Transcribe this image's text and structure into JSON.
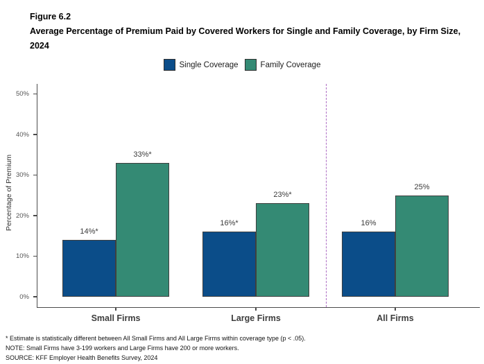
{
  "header": {
    "figure_number": "Figure 6.2",
    "title": "Average Percentage of Premium Paid by Covered Workers for Single and Family Coverage, by Firm Size, 2024"
  },
  "legend": {
    "items": [
      {
        "label": "Single Coverage",
        "color": "#0b4d89",
        "icon": "single-coverage-swatch"
      },
      {
        "label": "Family Coverage",
        "color": "#348a74",
        "icon": "family-coverage-swatch"
      }
    ]
  },
  "chart_data": {
    "type": "bar",
    "title": "Average Percentage of Premium Paid by Covered Workers for Single and Family Coverage, by Firm Size, 2024",
    "categories": [
      "Small Firms",
      "Large Firms",
      "All Firms"
    ],
    "series": [
      {
        "name": "Single Coverage",
        "color": "#0b4d89",
        "values": [
          14,
          16,
          16
        ],
        "labels": [
          "14%*",
          "16%*",
          "16%"
        ]
      },
      {
        "name": "Family Coverage",
        "color": "#348a74",
        "values": [
          33,
          23,
          25
        ],
        "labels": [
          "33%*",
          "23%*",
          "25%"
        ]
      }
    ],
    "xlabel": "",
    "ylabel": "Percentage of Premium",
    "ylim": [
      0,
      50
    ],
    "yticks": [
      0,
      10,
      20,
      30,
      40,
      50
    ],
    "ytick_labels": [
      "0%",
      "10%",
      "20%",
      "30%",
      "40%",
      "50%"
    ],
    "grid": false,
    "legend_position": "top",
    "separator": {
      "between": [
        "Large Firms",
        "All Firms"
      ],
      "style": "dashed",
      "color": "#ad6cc3"
    }
  },
  "footnotes": [
    "* Estimate is statistically different between All Small Firms and All Large Firms within coverage type (p < .05).",
    "NOTE: Small Firms have 3-199 workers and Large Firms have 200 or more workers.",
    "SOURCE: KFF Employer Health Benefits Survey, 2024"
  ]
}
